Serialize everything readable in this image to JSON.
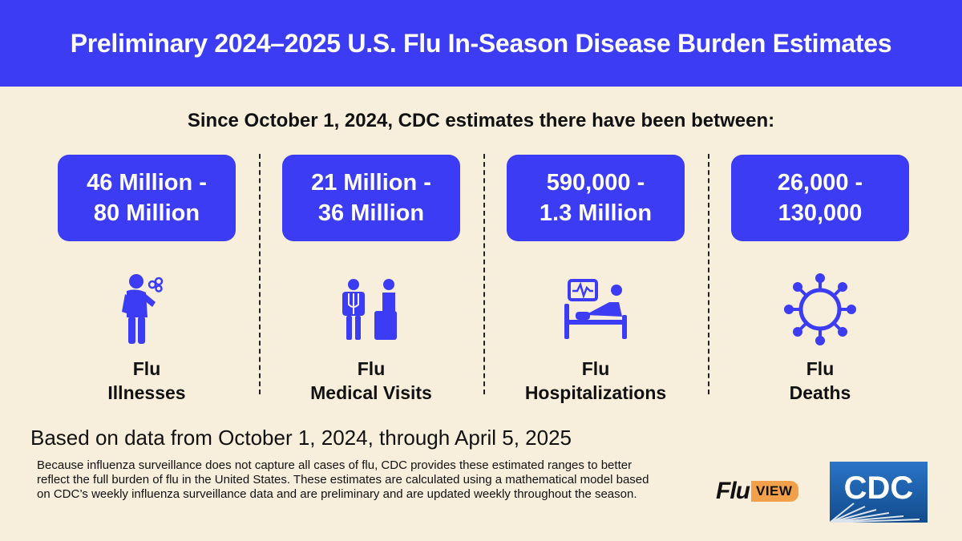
{
  "header": {
    "title": "Preliminary 2024–2025 U.S. Flu In-Season Disease Burden Estimates"
  },
  "subtitle": "Since October 1, 2024, CDC estimates there have been between:",
  "stats": [
    {
      "range_line1": "46 Million -",
      "range_line2": "80 Million",
      "label_line1": "Flu",
      "label_line2": "Illnesses",
      "icon": "sick-person-icon"
    },
    {
      "range_line1": "21 Million -",
      "range_line2": "36 Million",
      "label_line1": "Flu",
      "label_line2": "Medical Visits",
      "icon": "doctor-patient-icon"
    },
    {
      "range_line1": "590,000 -",
      "range_line2": "1.3 Million",
      "label_line1": "Flu",
      "label_line2": "Hospitalizations",
      "icon": "hospital-bed-icon"
    },
    {
      "range_line1": "26,000 -",
      "range_line2": "130,000",
      "label_line1": "Flu",
      "label_line2": "Deaths",
      "icon": "virus-icon"
    }
  ],
  "footer": {
    "based_on": "Based on data from October 1, 2024, through April 5, 2025",
    "note": "Because influenza surveillance does not capture all cases of flu, CDC provides these estimated ranges to better reflect the full burden of flu in the United States. These estimates are calculated using a mathematical model based on CDC’s weekly influenza surveillance data and are preliminary and are updated weekly throughout the season.",
    "fluview_logo": {
      "flu": "Flu",
      "view": "VIEW"
    },
    "cdc_logo": "CDC"
  },
  "colors": {
    "accent": "#3c3cf5",
    "background": "#f7efdc",
    "fluview_orange": "#f2a14a",
    "cdc_blue": "#1a5fa8"
  }
}
